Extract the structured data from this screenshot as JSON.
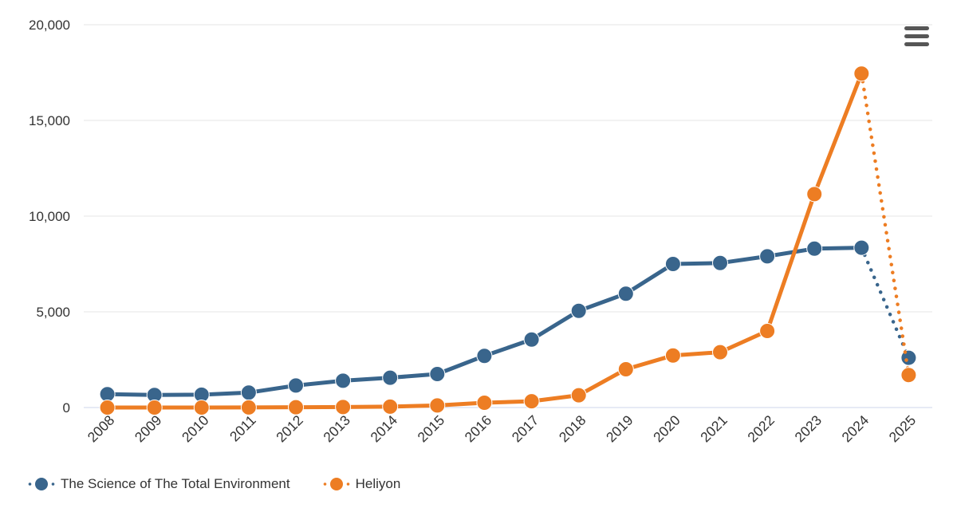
{
  "chart": {
    "background_color": "#ffffff",
    "text_color": "#333333",
    "grid_color": "#e6e6e6",
    "axis_line_color": "#ccd6eb",
    "context_menu_icon": "hamburger-icon"
  },
  "chart_data": {
    "type": "line",
    "categories": [
      "2008",
      "2009",
      "2010",
      "2011",
      "2012",
      "2013",
      "2014",
      "2015",
      "2016",
      "2017",
      "2018",
      "2019",
      "2020",
      "2021",
      "2022",
      "2023",
      "2024",
      "2025"
    ],
    "series": [
      {
        "name": "The Science of The Total Environment",
        "color": "#39658C",
        "values": [
          700,
          660,
          670,
          780,
          1150,
          1400,
          1560,
          1750,
          2700,
          3550,
          5050,
          5950,
          7500,
          7550,
          7900,
          8300,
          8350,
          2600
        ],
        "last_segment_dotted": true
      },
      {
        "name": "Heliyon",
        "color": "#ED7D23",
        "values": [
          0,
          0,
          0,
          5,
          15,
          25,
          45,
          110,
          250,
          330,
          640,
          2000,
          2720,
          2890,
          4000,
          11150,
          17450,
          1700
        ],
        "last_segment_dotted": true
      }
    ],
    "yticks": [
      0,
      5000,
      10000,
      15000,
      20000
    ],
    "ytick_labels": [
      "0",
      "5,000",
      "10,000",
      "15,000",
      "20,000"
    ],
    "ylim": [
      0,
      20000
    ],
    "xlabel": "",
    "ylabel": "",
    "title": "",
    "grid": true,
    "legend_position": "bottom-left"
  }
}
